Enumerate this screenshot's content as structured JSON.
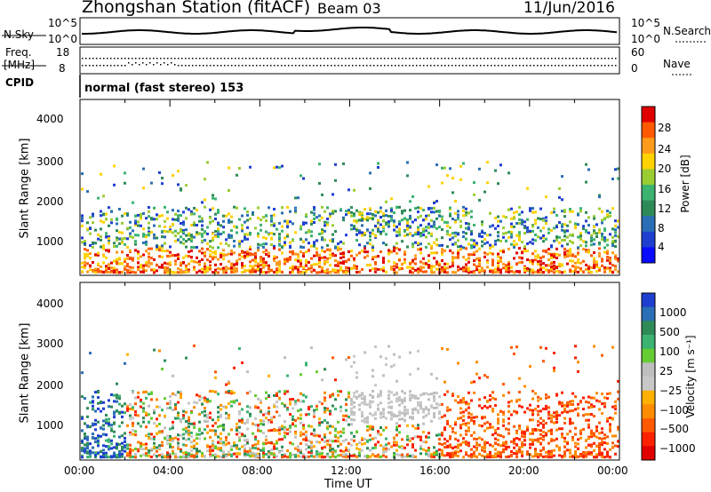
{
  "header": {
    "station": "Zhongshan Station (fitACF)",
    "beam": "Beam 03",
    "date": "11/Jun/2016"
  },
  "top_panels": {
    "nsky_label": "N.Sky",
    "nsky_ticks": [
      "10^5",
      "10^0"
    ],
    "nsearch_label": "N.Search",
    "nsearch_ticks": [
      "10^5",
      "10^0"
    ],
    "freq_label": "Freq.",
    "freq_unit": "[MHz]",
    "freq_ticks": [
      "18",
      "8"
    ],
    "nave_label": "Nave",
    "nave_ticks": [
      "60",
      "0"
    ],
    "cpid_label": "CPID",
    "cpid_text": "normal (fast stereo) 153"
  },
  "chart_data": [
    {
      "type": "heatmap",
      "name": "power",
      "ylabel": "Slant Range [km]",
      "yticks": [
        "4000",
        "3000",
        "2000",
        "1000"
      ],
      "ylim": [
        200,
        4500
      ],
      "xlim": [
        0,
        24
      ],
      "colorbar": {
        "label": "Power [dB]",
        "ticks": [
          "28",
          "24",
          "20",
          "16",
          "12",
          "8",
          "4"
        ],
        "colors": [
          "#e00000",
          "#ff5a00",
          "#ff9a1a",
          "#ffd200",
          "#9acd32",
          "#3cb371",
          "#2e8b57",
          "#2a6fb5",
          "#1f3fd0",
          "#0a0aff"
        ]
      }
    },
    {
      "type": "heatmap",
      "name": "velocity",
      "ylabel": "Slant Range [km]",
      "yticks": [
        "4000",
        "3000",
        "2000",
        "1000"
      ],
      "ylim": [
        200,
        4500
      ],
      "xlim": [
        0,
        24
      ],
      "xticks": [
        "00:00",
        "04:00",
        "08:00",
        "12:00",
        "16:00",
        "20:00",
        "00:00"
      ],
      "xlabel": "Time UT",
      "colorbar": {
        "label": "Velocity [m s⁻¹]",
        "ticks": [
          "1000",
          "500",
          "100",
          "25",
          "−25",
          "−100",
          "−500",
          "−1000"
        ],
        "colors": [
          "#1f3fd0",
          "#2a6fb5",
          "#2e8b57",
          "#3cb371",
          "#66cc33",
          "#bfbfbf",
          "#c8c8c8",
          "#ffb000",
          "#ff8c00",
          "#ff5a00",
          "#ff2200",
          "#e00000"
        ]
      }
    }
  ]
}
